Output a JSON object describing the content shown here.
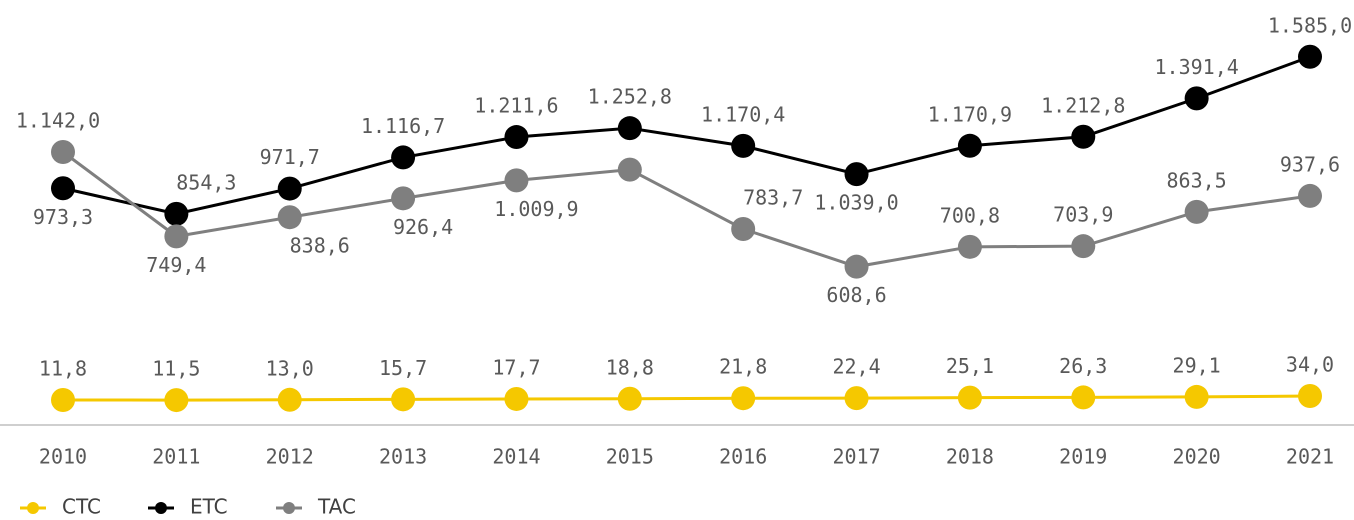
{
  "chart_data": {
    "type": "line",
    "categories": [
      "2010",
      "2011",
      "2012",
      "2013",
      "2014",
      "2015",
      "2016",
      "2017",
      "2018",
      "2019",
      "2020",
      "2021"
    ],
    "ylim": [
      -128,
      1756
    ],
    "y2lim": [
      -127,
      2123
    ],
    "legend": "bottom-left",
    "series": [
      {
        "name": "CTC",
        "color": "#f5c800",
        "axis": "y2",
        "values": [
          11.8,
          11.5,
          13.0,
          15.7,
          17.7,
          18.8,
          21.8,
          22.4,
          25.1,
          26.3,
          29.1,
          34.0
        ],
        "value_labels": [
          "11,8",
          "11,5",
          "13,0",
          "15,7",
          "17,7",
          "18,8",
          "21,8",
          "22,4",
          "25,1",
          "26,3",
          "29,1",
          "34,0"
        ]
      },
      {
        "name": "ETC",
        "color": "#000000",
        "values": [
          973.3,
          854.3,
          971.7,
          1116.7,
          1211.6,
          1252.8,
          1170.4,
          1039.0,
          1170.9,
          1212.8,
          1391.4,
          1585.0
        ],
        "value_labels": [
          "973,3",
          "854,3",
          "971,7",
          "1.116,7",
          "1.211,6",
          "1.252,8",
          "1.170,4",
          "1.039,0",
          "1.170,9",
          "1.212,8",
          "1.391,4",
          "1.585,0"
        ]
      },
      {
        "name": "TAC",
        "color": "#7f7f7f",
        "values": [
          1142.0,
          749.4,
          838.6,
          926.4,
          1009.9,
          1060,
          783.7,
          608.6,
          700.8,
          703.9,
          863.5,
          937.6
        ],
        "value_labels": [
          "1.142,0",
          "749,4",
          "838,6",
          "926,4",
          "1.009,9",
          null,
          "783,7",
          "608,6",
          "700,8",
          "703,9",
          "863,5",
          "937,6"
        ]
      }
    ]
  }
}
